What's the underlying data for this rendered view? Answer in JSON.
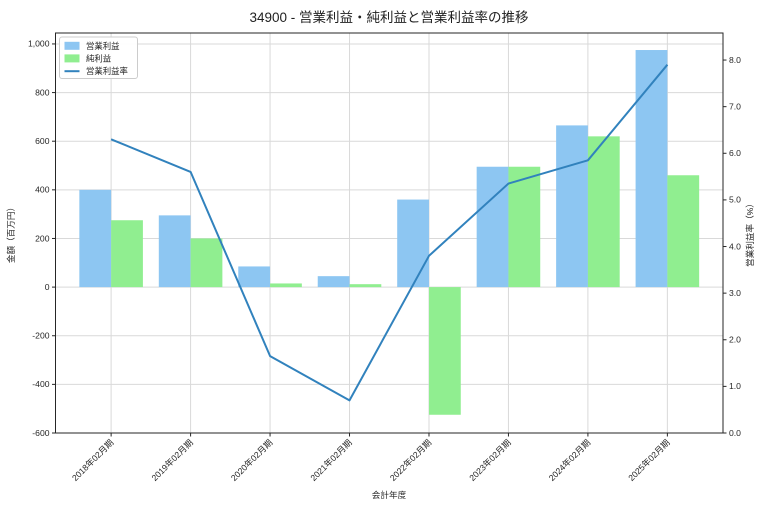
{
  "page": {
    "background": "#ffffff"
  },
  "chart_data": {
    "type": "bar+line",
    "title": "34900 - 営業利益・純利益と営業利益率の推移",
    "xlabel": "会計年度",
    "ylabel_left": "金額（百万円）",
    "ylabel_right": "営業利益率（%）",
    "grid": true,
    "legend_position": "upper left",
    "categories": [
      "2018年02月期",
      "2019年02月期",
      "2020年02月期",
      "2021年02月期",
      "2022年02月期",
      "2023年02月期",
      "2024年02月期",
      "2025年02月期"
    ],
    "series": [
      {
        "key": "operating-profit",
        "name": "営業利益",
        "type": "bar",
        "axis": "left",
        "color": "#8dc6f2",
        "values": [
          400,
          295,
          85,
          45,
          360,
          495,
          665,
          975
        ]
      },
      {
        "key": "net-profit",
        "name": "純利益",
        "type": "bar",
        "axis": "left",
        "color": "#90ee90",
        "values": [
          275,
          200,
          15,
          12,
          -525,
          495,
          620,
          460
        ]
      },
      {
        "key": "operating-margin",
        "name": "営業利益率",
        "type": "line",
        "axis": "right",
        "color": "#3182bd",
        "values": [
          6.3,
          5.6,
          1.65,
          0.7,
          3.8,
          5.35,
          5.85,
          7.9
        ]
      }
    ],
    "left_axis": {
      "ticks": [
        -600,
        -400,
        -200,
        0,
        200,
        400,
        600,
        800,
        1000
      ],
      "lim": [
        -600,
        1045
      ],
      "tick_format": "comma"
    },
    "right_axis": {
      "ticks": [
        0.0,
        1.0,
        2.0,
        3.0,
        4.0,
        5.0,
        6.0,
        7.0,
        8.0
      ],
      "lim": [
        0,
        8.58
      ],
      "tick_format": "one_decimal"
    },
    "colors": {
      "grid": "#d9d9d9",
      "axis": "#262626",
      "legend_border": "#cccccc",
      "plot_bg": "#ffffff"
    }
  }
}
